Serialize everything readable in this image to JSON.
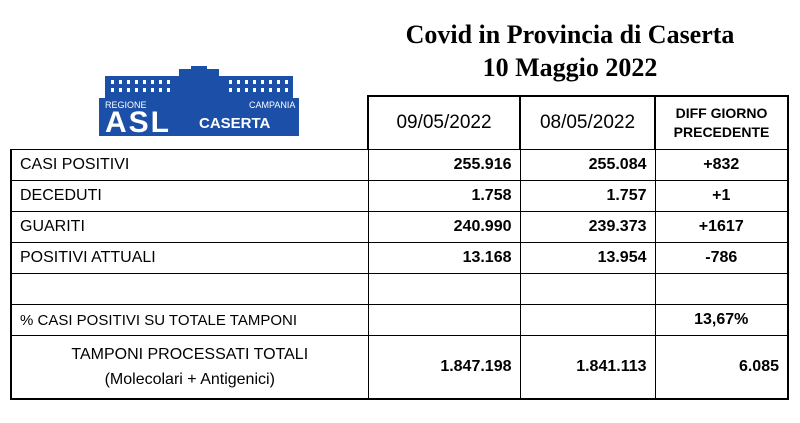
{
  "title": {
    "line1": "Covid in Provincia di Caserta",
    "line2": "10 Maggio 2022"
  },
  "logo": {
    "region_left": "REGIONE",
    "region_right": "CAMPANIA",
    "asl": "ASL",
    "city": "CASERTA"
  },
  "columns": {
    "date1": "09/05/2022",
    "date2": "08/05/2022",
    "diff_line1": "DIFF GIORNO",
    "diff_line2": "PRECEDENTE"
  },
  "rows": [
    {
      "label": "CASI POSITIVI",
      "v1": "255.916",
      "v2": "255.084",
      "diff": "+832"
    },
    {
      "label": "DECEDUTI",
      "v1": "1.758",
      "v2": "1.757",
      "diff": "+1"
    },
    {
      "label": "GUARITI",
      "v1": "240.990",
      "v2": "239.373",
      "diff": "+1617"
    },
    {
      "label": "POSITIVI ATTUALI",
      "v1": "13.168",
      "v2": "13.954",
      "diff": "-786"
    }
  ],
  "pct": {
    "label": "% CASI POSITIVI SU TOTALE TAMPONI",
    "diff": "13,67%"
  },
  "tamponi": {
    "line1": "TAMPONI PROCESSATI TOTALI",
    "line2": "(Molecolari + Antigenici)",
    "v1": "1.847.198",
    "v2": "1.841.113",
    "diff": "6.085"
  },
  "colors": {
    "logo_blue": "#1b4fa8"
  }
}
